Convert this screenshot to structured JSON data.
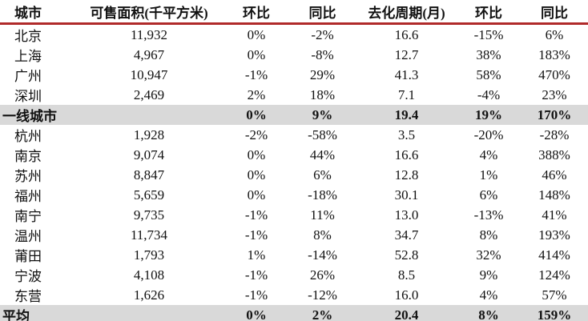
{
  "table": {
    "columns": [
      "城市",
      "可售面积(千平方米)",
      "环比",
      "同比",
      "去化周期(月)",
      "环比",
      "同比"
    ],
    "rows": [
      {
        "highlight": false,
        "cells": [
          "北京",
          "11,932",
          "0%",
          "-2%",
          "16.6",
          "-15%",
          "6%"
        ]
      },
      {
        "highlight": false,
        "cells": [
          "上海",
          "4,967",
          "0%",
          "-8%",
          "12.7",
          "38%",
          "183%"
        ]
      },
      {
        "highlight": false,
        "cells": [
          "广州",
          "10,947",
          "-1%",
          "29%",
          "41.3",
          "58%",
          "470%"
        ]
      },
      {
        "highlight": false,
        "cells": [
          "深圳",
          "2,469",
          "2%",
          "18%",
          "7.1",
          "-4%",
          "23%"
        ]
      },
      {
        "highlight": true,
        "cells": [
          "一线城市",
          "",
          "0%",
          "9%",
          "19.4",
          "19%",
          "170%"
        ]
      },
      {
        "highlight": false,
        "cells": [
          "杭州",
          "1,928",
          "-2%",
          "-58%",
          "3.5",
          "-20%",
          "-28%"
        ]
      },
      {
        "highlight": false,
        "cells": [
          "南京",
          "9,074",
          "0%",
          "44%",
          "16.6",
          "4%",
          "388%"
        ]
      },
      {
        "highlight": false,
        "cells": [
          "苏州",
          "8,847",
          "0%",
          "6%",
          "12.8",
          "1%",
          "46%"
        ]
      },
      {
        "highlight": false,
        "cells": [
          "福州",
          "5,659",
          "0%",
          "-18%",
          "30.1",
          "6%",
          "148%"
        ]
      },
      {
        "highlight": false,
        "cells": [
          "南宁",
          "9,735",
          "-1%",
          "11%",
          "13.0",
          "-13%",
          "41%"
        ]
      },
      {
        "highlight": false,
        "cells": [
          "温州",
          "11,734",
          "-1%",
          "8%",
          "34.7",
          "8%",
          "193%"
        ]
      },
      {
        "highlight": false,
        "cells": [
          "莆田",
          "1,793",
          "1%",
          "-14%",
          "52.8",
          "32%",
          "414%"
        ]
      },
      {
        "highlight": false,
        "cells": [
          "宁波",
          "4,108",
          "-1%",
          "26%",
          "8.5",
          "9%",
          "124%"
        ]
      },
      {
        "highlight": false,
        "cells": [
          "东营",
          "1,626",
          "-1%",
          "-12%",
          "16.0",
          "4%",
          "57%"
        ]
      },
      {
        "highlight": true,
        "cells": [
          "平均",
          "",
          "0%",
          "2%",
          "20.4",
          "8%",
          "159%"
        ]
      }
    ]
  },
  "colors": {
    "header_rule": "#b02a2a",
    "highlight_bg": "#d9d9d9",
    "text": "#111111"
  },
  "chart_data": {
    "type": "table",
    "title": "",
    "columns": [
      "城市",
      "可售面积(千平方米)",
      "环比",
      "同比",
      "去化周期(月)",
      "环比",
      "同比"
    ],
    "rows": [
      [
        "北京",
        "11,932",
        "0%",
        "-2%",
        "16.6",
        "-15%",
        "6%"
      ],
      [
        "上海",
        "4,967",
        "0%",
        "-8%",
        "12.7",
        "38%",
        "183%"
      ],
      [
        "广州",
        "10,947",
        "-1%",
        "29%",
        "41.3",
        "58%",
        "470%"
      ],
      [
        "深圳",
        "2,469",
        "2%",
        "18%",
        "7.1",
        "-4%",
        "23%"
      ],
      [
        "一线城市",
        "",
        "0%",
        "9%",
        "19.4",
        "19%",
        "170%"
      ],
      [
        "杭州",
        "1,928",
        "-2%",
        "-58%",
        "3.5",
        "-20%",
        "-28%"
      ],
      [
        "南京",
        "9,074",
        "0%",
        "44%",
        "16.6",
        "4%",
        "388%"
      ],
      [
        "苏州",
        "8,847",
        "0%",
        "6%",
        "12.8",
        "1%",
        "46%"
      ],
      [
        "福州",
        "5,659",
        "0%",
        "-18%",
        "30.1",
        "6%",
        "148%"
      ],
      [
        "南宁",
        "9,735",
        "-1%",
        "11%",
        "13.0",
        "-13%",
        "41%"
      ],
      [
        "温州",
        "11,734",
        "-1%",
        "8%",
        "34.7",
        "8%",
        "193%"
      ],
      [
        "莆田",
        "1,793",
        "1%",
        "-14%",
        "52.8",
        "32%",
        "414%"
      ],
      [
        "宁波",
        "4,108",
        "-1%",
        "26%",
        "8.5",
        "9%",
        "124%"
      ],
      [
        "东营",
        "1,626",
        "-1%",
        "-12%",
        "16.0",
        "4%",
        "57%"
      ],
      [
        "平均",
        "",
        "0%",
        "2%",
        "20.4",
        "8%",
        "159%"
      ]
    ],
    "layout_hints": {
      "highlighted_row_indexes": [
        4,
        14
      ],
      "header_rule_color": "#b02a2a",
      "highlight_bg": "#d9d9d9",
      "grid": false
    }
  }
}
